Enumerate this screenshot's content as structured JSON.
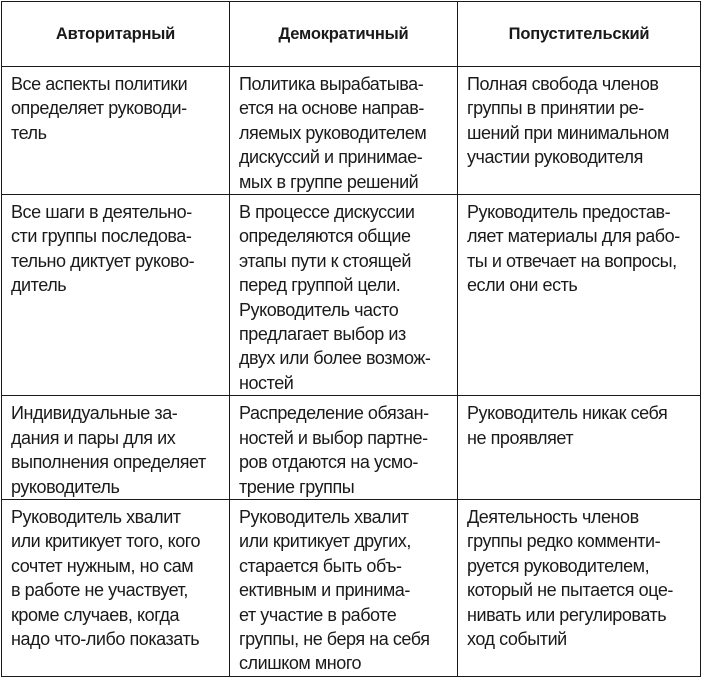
{
  "table": {
    "headers": [
      "Авторитарный",
      "Демократичный",
      "Попустительский"
    ],
    "rows": [
      [
        "Все аспекты политики\nопределяет руководи-\nтель",
        "Политика вырабатыва-\nется на основе направ-\nляемых руководителем\nдискуссий и принимае-\nмых в группе решений",
        "Полная свобода членов\nгруппы в принятии ре-\nшений при минимальном\nучастии руководителя"
      ],
      [
        "Все шаги в деятельно-\nсти группы последова-\nтельно диктует руково-\nдитель",
        "В процессе дискуссии\nопределяются общие\nэтапы пути к стоящей\nперед группой цели.\nРуководитель часто\nпредлагает выбор из\nдвух или более возмож-\nностей",
        "Руководитель предостав-\nляет материалы для рабо-\nты и отвечает на вопросы,\nесли они есть"
      ],
      [
        "Индивидуальные за-\nдания и пары для их\nвыполнения определяет\nруководитель",
        "Распределение обязан-\nностей и выбор партне-\nров отдаются на усмо-\nтрение группы",
        "Руководитель никак себя\nне проявляет"
      ],
      [
        "Руководитель хвалит\nили критикует того, кого\nсочтет нужным, но сам\nв работе не участвует,\nкроме случаев, когда\nнадо что-либо показать",
        "Руководитель хвалит\nили критикует других,\nстарается быть объ-\nективным и принима-\nет участие в работе\nгруппы, не беря на себя\nслишком много",
        "Деятельность членов\nгруппы редко комменти-\nруется руководителем,\nкоторый не пытается оце-\nнивать или регулировать\nход событий"
      ]
    ]
  }
}
